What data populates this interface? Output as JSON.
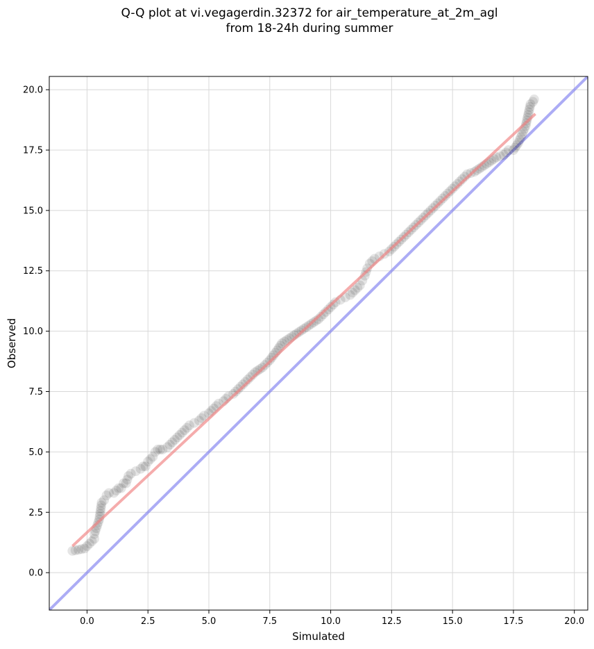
{
  "chart_data": {
    "type": "scatter",
    "title": [
      "Q-Q plot at vi.vegagerdin.32372 for air_temperature_at_2m_agl",
      "from 18-24h during summer"
    ],
    "xlabel": "Simulated",
    "ylabel": "Observed",
    "xlim": [
      -1.55,
      20.55
    ],
    "ylim": [
      -1.55,
      20.55
    ],
    "xticks": [
      0.0,
      2.5,
      5.0,
      7.5,
      10.0,
      12.5,
      15.0,
      17.5,
      20.0
    ],
    "yticks": [
      0.0,
      2.5,
      5.0,
      7.5,
      10.0,
      12.5,
      15.0,
      17.5,
      20.0
    ],
    "grid": true,
    "colors": {
      "points": "#000000",
      "fit_line": "#f08080",
      "identity_line": "#8080f0"
    },
    "identity_line": {
      "x": [
        -1.55,
        20.55
      ],
      "y": [
        -1.55,
        20.55
      ]
    },
    "fit_line": {
      "x": [
        -0.6,
        18.4
      ],
      "y": [
        1.1,
        19.0
      ]
    },
    "series": [
      {
        "x": [
          -0.6,
          -0.1,
          0.1,
          0.3,
          0.3,
          0.5,
          0.6,
          0.7,
          0.8,
          0.9,
          1.1,
          1.3,
          1.4,
          1.5,
          1.6,
          1.7,
          1.8,
          2.0,
          2.2,
          2.3,
          2.4,
          2.5,
          2.6,
          2.7,
          2.8,
          2.9,
          3.0,
          3.1,
          3.3,
          3.4,
          3.5,
          3.6,
          3.7,
          3.8,
          3.9,
          4.0,
          4.2,
          4.4,
          4.6,
          4.8,
          5.0,
          5.2,
          5.4,
          5.6,
          5.8,
          6.0,
          6.3,
          6.6,
          6.9,
          7.2,
          7.5,
          7.8,
          8.0,
          8.3,
          8.6,
          8.9,
          9.2,
          9.5,
          9.8,
          10.0,
          10.2,
          10.4,
          10.6,
          10.8,
          11.0,
          11.2,
          11.3,
          11.4,
          11.5,
          11.6,
          11.8,
          12.0,
          12.2,
          12.4,
          12.6,
          12.8,
          13.0,
          13.2,
          13.4,
          13.6,
          13.8,
          14.0,
          14.2,
          14.4,
          14.6,
          14.8,
          15.0,
          15.2,
          15.4,
          15.6,
          15.9,
          16.5,
          16.8,
          17.1,
          17.3,
          17.5,
          17.7,
          18.0,
          18.2,
          18.3,
          18.35
        ],
        "y": [
          0.9,
          1.0,
          1.2,
          1.4,
          1.6,
          2.2,
          2.9,
          3.0,
          3.2,
          3.3,
          3.3,
          3.5,
          3.5,
          3.7,
          3.7,
          4.0,
          4.1,
          4.2,
          4.3,
          4.4,
          4.4,
          4.6,
          4.7,
          4.8,
          5.0,
          5.1,
          5.1,
          5.1,
          5.2,
          5.3,
          5.4,
          5.5,
          5.6,
          5.7,
          5.8,
          5.9,
          6.1,
          6.2,
          6.3,
          6.5,
          6.6,
          6.8,
          7.0,
          7.1,
          7.3,
          7.4,
          7.7,
          8.0,
          8.3,
          8.5,
          8.8,
          9.2,
          9.5,
          9.7,
          9.9,
          10.1,
          10.3,
          10.5,
          10.8,
          11.0,
          11.2,
          11.3,
          11.4,
          11.5,
          11.7,
          11.9,
          12.1,
          12.3,
          12.6,
          12.8,
          13.0,
          13.1,
          13.2,
          13.3,
          13.5,
          13.7,
          13.9,
          14.1,
          14.3,
          14.5,
          14.7,
          14.9,
          15.1,
          15.3,
          15.5,
          15.7,
          15.9,
          16.1,
          16.3,
          16.5,
          16.6,
          17.0,
          17.2,
          17.3,
          17.5,
          17.5,
          17.8,
          18.5,
          19.4,
          19.5,
          19.6
        ]
      }
    ]
  }
}
